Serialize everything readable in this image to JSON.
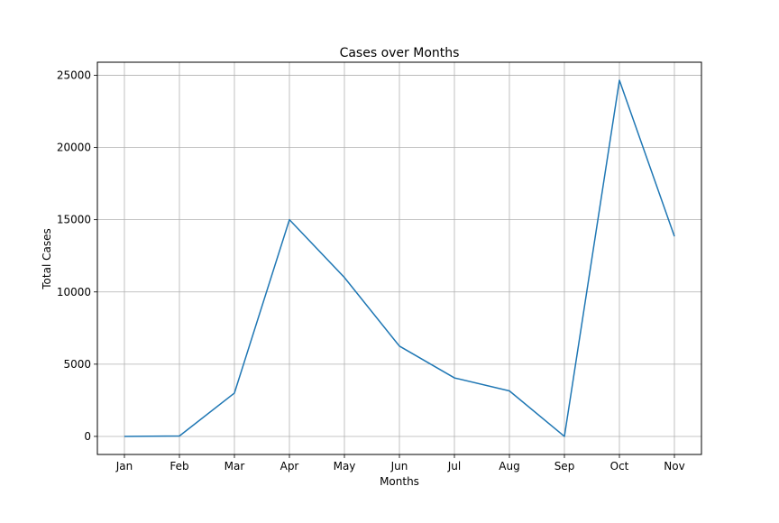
{
  "chart_data": {
    "type": "line",
    "title": "Cases over Months",
    "xlabel": "Months",
    "ylabel": "Total Cases",
    "categories": [
      "Jan",
      "Feb",
      "Mar",
      "Apr",
      "May",
      "Jun",
      "Jul",
      "Aug",
      "Sep",
      "Oct",
      "Nov"
    ],
    "series": [
      {
        "values": [
          0,
          30,
          3000,
          15000,
          11000,
          6250,
          4050,
          3150,
          0,
          24650,
          13850
        ],
        "color": "#1f77b4"
      }
    ],
    "ylim": [
      -1250,
      25900
    ],
    "yticks": [
      0,
      5000,
      10000,
      15000,
      20000,
      25000
    ],
    "ytick_labels": [
      "0",
      "5000",
      "10000",
      "15000",
      "20000",
      "25000"
    ],
    "grid": true,
    "legend": "none"
  }
}
